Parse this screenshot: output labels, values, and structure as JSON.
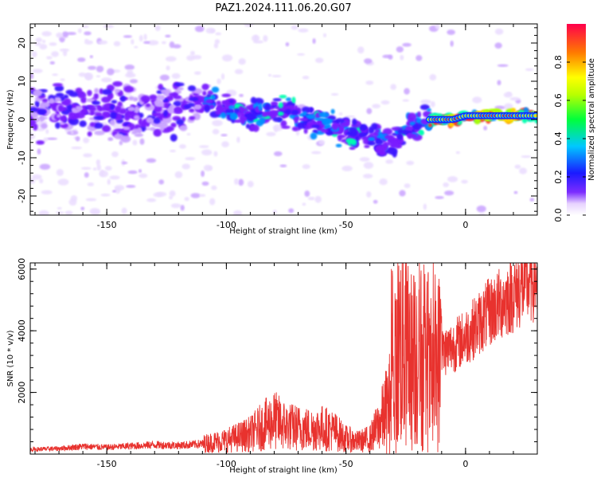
{
  "figure": {
    "title": "PAZ1.2024.111.06.20.G07"
  },
  "chart_data": [
    {
      "type": "heatmap",
      "xlabel": "Height of straight line (km)",
      "ylabel": "Frequency (Hz)",
      "xlim": [
        -182,
        30
      ],
      "ylim": [
        -25,
        25
      ],
      "xticks": [
        -150,
        -100,
        -50,
        0
      ],
      "yticks": [
        -20,
        -10,
        0,
        10,
        20
      ],
      "colorbar": {
        "label": "Normalized spectral amplitude",
        "range": [
          0,
          1
        ],
        "ticks": [
          0.0,
          0.2,
          0.4,
          0.6,
          0.8
        ],
        "colormap": "rainbow"
      },
      "ridge": [
        {
          "x": -180,
          "y": 2
        },
        {
          "x": -160,
          "y": 3
        },
        {
          "x": -140,
          "y": 1
        },
        {
          "x": -120,
          "y": 3
        },
        {
          "x": -110,
          "y": 5
        },
        {
          "x": -100,
          "y": 4
        },
        {
          "x": -90,
          "y": 1
        },
        {
          "x": -80,
          "y": 2
        },
        {
          "x": -70,
          "y": 1
        },
        {
          "x": -60,
          "y": -1
        },
        {
          "x": -50,
          "y": -3
        },
        {
          "x": -45,
          "y": -5
        },
        {
          "x": -40,
          "y": -4
        },
        {
          "x": -35,
          "y": -6
        },
        {
          "x": -30,
          "y": -6
        },
        {
          "x": -25,
          "y": -3
        },
        {
          "x": -20,
          "y": -2
        },
        {
          "x": -15,
          "y": 0
        },
        {
          "x": -10,
          "y": 0
        },
        {
          "x": -5,
          "y": 0
        },
        {
          "x": 0,
          "y": 1
        },
        {
          "x": 10,
          "y": 1
        },
        {
          "x": 20,
          "y": 1
        },
        {
          "x": 30,
          "y": 1
        }
      ]
    },
    {
      "type": "line",
      "xlabel": "Height of straight line (km)",
      "ylabel": "SNR (10 * v/v)",
      "xlim": [
        -182,
        30
      ],
      "ylim": [
        0,
        6200
      ],
      "xticks": [
        -150,
        -100,
        -50,
        0
      ],
      "yticks": [
        2000,
        4000,
        6000
      ],
      "color": "#e8322e",
      "series": [
        {
          "x": [
            -182,
            -170,
            -160,
            -150,
            -140,
            -130,
            -120,
            -110,
            -100,
            -95,
            -90,
            -85,
            -80,
            -75,
            -70,
            -65,
            -60,
            -55,
            -50,
            -45,
            -40,
            -35,
            -30,
            -28,
            -26,
            -24,
            -22,
            -20,
            -18,
            -16,
            -14,
            -12,
            -10,
            -5,
            0,
            5,
            10,
            15,
            20,
            25,
            30
          ],
          "y": [
            150,
            180,
            250,
            220,
            260,
            300,
            280,
            330,
            450,
            550,
            650,
            900,
            1100,
            900,
            850,
            800,
            850,
            750,
            500,
            400,
            500,
            1100,
            2000,
            3600,
            3500,
            3200,
            3000,
            3500,
            2800,
            2500,
            2200,
            2800,
            3300,
            3500,
            3800,
            4200,
            4600,
            4900,
            5200,
            5500,
            5700
          ]
        }
      ]
    }
  ]
}
